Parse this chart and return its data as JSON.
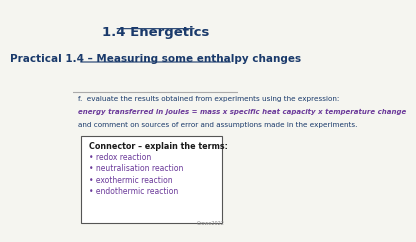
{
  "title": "1.4 Energetics",
  "subtitle": "Practical 1.4 – Measuring some enthalpy changes",
  "objective_normal1": "f.  evaluate the results obtained from experiments using the expression:",
  "objective_italic": "energy transferred in joules = mass x specific heat capacity x temperature change",
  "objective_normal2": "and comment on sources of error and assumptions made in the experiments.",
  "connector_title": "Connector – explain the terms:",
  "connector_items": [
    "• redox reaction",
    "• neutralisation reaction",
    "• exothermic reaction",
    "• endothermic reaction"
  ],
  "credit": "Crowe2022",
  "bg_color": "#f5f5f0",
  "title_color": "#1a3a6b",
  "subtitle_color": "#1a3a6b",
  "objective_color": "#1a3a6b",
  "italic_color": "#6b3a9a",
  "connector_title_color": "#1a1a1a",
  "connector_item_color": "#6b3a9a",
  "box_edge_color": "#555555",
  "credit_color": "#888888"
}
